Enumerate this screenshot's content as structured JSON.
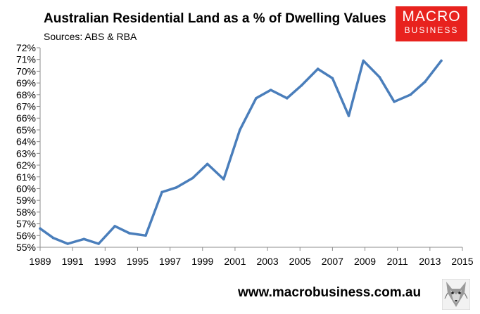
{
  "header": {
    "title": "Australian Residential Land as a % of Dwelling Values",
    "subtitle": "Sources: ABS & RBA"
  },
  "logo": {
    "line1": "MACRO",
    "line2": "BUSINESS",
    "color": "#e8221e",
    "icon": "macrobusiness-logo"
  },
  "footer": {
    "website": "www.macrobusiness.com.au",
    "icon": "wolf-icon"
  },
  "chart_data": {
    "type": "line",
    "title": "Australian Residential Land as a % of Dwelling Values",
    "subtitle": "Sources: ABS & RBA",
    "xlabel": "",
    "ylabel": "",
    "xlim": [
      1989,
      2015
    ],
    "ylim": [
      55,
      72
    ],
    "x_ticks": [
      "1989",
      "1991",
      "1993",
      "1995",
      "1997",
      "1999",
      "2001",
      "2003",
      "2005",
      "2007",
      "2009",
      "2011",
      "2013",
      "2015"
    ],
    "y_ticks": [
      "55%",
      "56%",
      "57%",
      "58%",
      "59%",
      "60%",
      "61%",
      "62%",
      "63%",
      "64%",
      "65%",
      "66%",
      "67%",
      "68%",
      "69%",
      "70%",
      "71%",
      "72%"
    ],
    "grid": false,
    "legend": "none",
    "line_color": "#4a7ebb",
    "x": [
      1989.0,
      1989.8,
      1990.7,
      1991.7,
      1992.6,
      1993.6,
      1994.5,
      1995.5,
      1996.5,
      1997.4,
      1998.4,
      1999.3,
      2000.3,
      2001.3,
      2002.3,
      2003.2,
      2004.2,
      2005.1,
      2006.1,
      2007.0,
      2008.0,
      2008.9,
      2009.9,
      2010.8,
      2011.8,
      2012.7,
      2013.7
    ],
    "values": [
      56.6,
      55.8,
      55.3,
      55.7,
      55.3,
      56.8,
      56.2,
      56.0,
      59.7,
      60.1,
      60.9,
      62.1,
      60.8,
      65.0,
      67.7,
      68.4,
      67.7,
      68.8,
      70.2,
      69.4,
      66.2,
      70.9,
      69.5,
      67.4,
      68.0,
      69.1,
      70.9
    ]
  }
}
